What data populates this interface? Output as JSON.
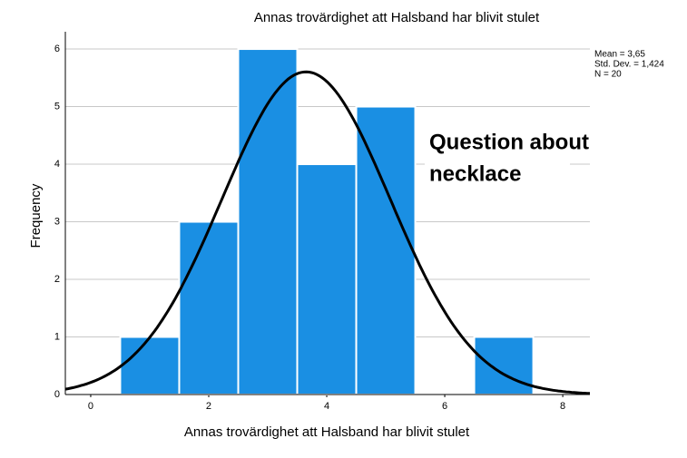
{
  "chart_data": {
    "type": "histogram",
    "title": "Annas trovärdighet att  Halsband har blivit stulet",
    "x_label": "Annas trovärdighet att  Halsband har blivit stulet",
    "y_label": "Frequency",
    "bins": [
      0.5,
      1.5,
      2.5,
      3.5,
      4.5,
      5.5,
      6.5,
      7.5
    ],
    "values": [
      1,
      3,
      6,
      4,
      5,
      0,
      1
    ],
    "color": "#1a8fe3",
    "xlim": [
      -0.43,
      8.46
    ],
    "xticks": [
      0,
      2,
      4,
      6,
      8
    ],
    "ylim": [
      0,
      6.3
    ],
    "yticks": [
      0,
      1,
      2,
      3,
      4,
      5,
      6
    ],
    "grid": true,
    "stats": [
      {
        "value": 3.65,
        "label": "Mean = 3,65"
      },
      {
        "value": 1.424,
        "label": "Std. Dev. = 1,424"
      },
      {
        "value": 20,
        "label": "N = 20"
      }
    ],
    "annotation": [
      "Question about",
      "necklace"
    ]
  }
}
